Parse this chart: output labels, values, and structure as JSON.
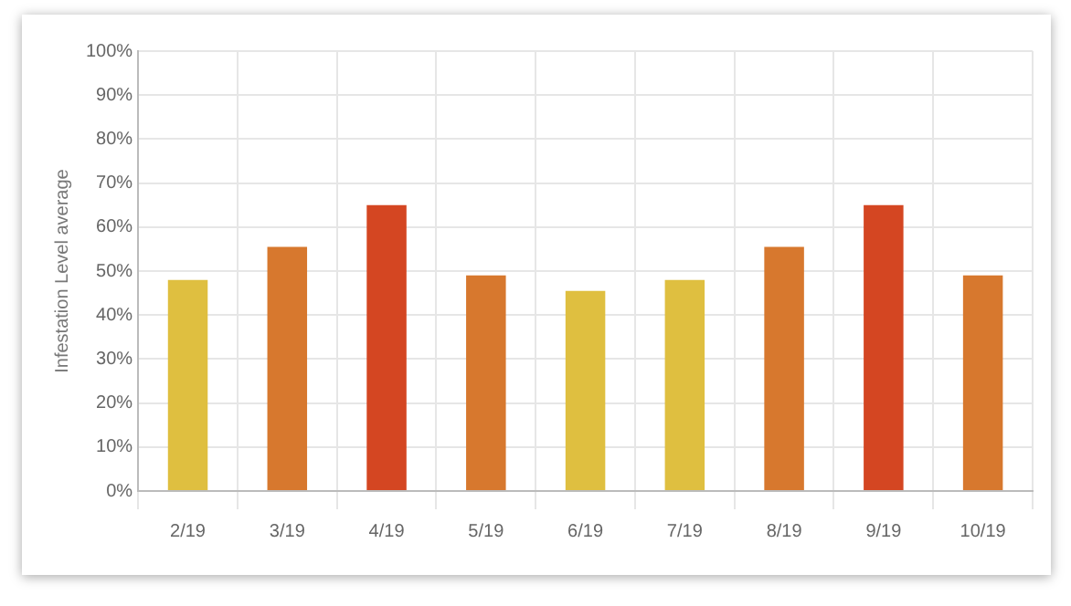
{
  "chart_data": {
    "type": "bar",
    "ylabel": "Infestation Level average",
    "categories": [
      "2/19",
      "3/19",
      "4/19",
      "5/19",
      "6/19",
      "7/19",
      "8/19",
      "9/19",
      "10/19"
    ],
    "values": [
      48,
      55.5,
      65,
      49,
      45.5,
      48,
      55.5,
      65,
      49
    ],
    "colors": [
      "#dfbf40",
      "#d7782e",
      "#d44622",
      "#d7782e",
      "#dfbf40",
      "#dfbf40",
      "#d7782e",
      "#d44622",
      "#d7782e"
    ],
    "ylim": [
      0,
      100
    ],
    "yticks": [
      {
        "value": 0,
        "label": "0%"
      },
      {
        "value": 10,
        "label": "10%"
      },
      {
        "value": 20,
        "label": "20%"
      },
      {
        "value": 30,
        "label": "30%"
      },
      {
        "value": 40,
        "label": "40%"
      },
      {
        "value": 50,
        "label": "50%"
      },
      {
        "value": 60,
        "label": "60%"
      },
      {
        "value": 70,
        "label": "70%"
      },
      {
        "value": 80,
        "label": "80%"
      },
      {
        "value": 90,
        "label": "90%"
      },
      {
        "value": 100,
        "label": "100%"
      }
    ],
    "grid": true,
    "legend": false
  }
}
